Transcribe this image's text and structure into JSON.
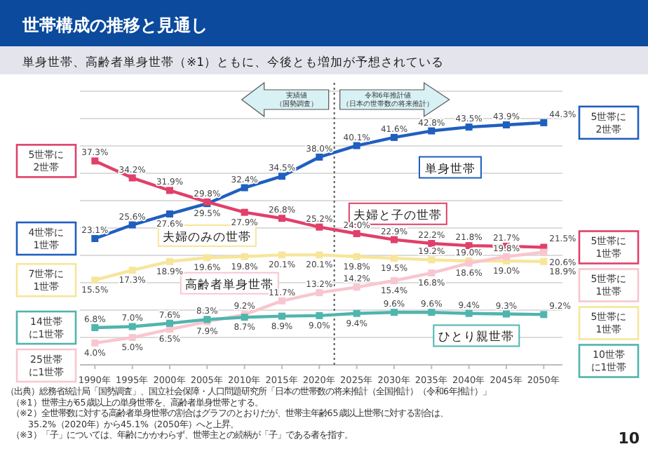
{
  "chart_data": {
    "type": "line",
    "title": "世帯構成の推移と見通し",
    "subtitle": "単身世帯、高齢者単身世帯（※1）ともに、今後とも増加が予想されている",
    "x": [
      1990,
      1995,
      2000,
      2005,
      2010,
      2015,
      2020,
      2025,
      2030,
      2035,
      2040,
      2045,
      2050
    ],
    "xlim": [
      1988,
      2052.5
    ],
    "xticks": [
      {
        "value": 1990,
        "label": "1990年"
      },
      {
        "value": 1995,
        "label": "1995年"
      },
      {
        "value": 2000,
        "label": "2000年"
      },
      {
        "value": 2005,
        "label": "2005年"
      },
      {
        "value": 2010,
        "label": "2010年"
      },
      {
        "value": 2015,
        "label": "2015年"
      },
      {
        "value": 2020,
        "label": "2020年"
      },
      {
        "value": 2025,
        "label": "2025年"
      },
      {
        "value": 2030,
        "label": "2030年"
      },
      {
        "value": 2035,
        "label": "2035年"
      },
      {
        "value": 2040,
        "label": "2040年"
      },
      {
        "value": 2045,
        "label": "2045年"
      },
      {
        "value": 2050,
        "label": "2050年"
      }
    ],
    "tick_labels": "x",
    "grid": "y",
    "marker": "square",
    "line_style": "solid",
    "series": [
      {
        "name": "単身世帯",
        "color": "#1f5fbf",
        "values": [
          23.1,
          25.6,
          27.6,
          29.5,
          32.4,
          34.5,
          38.0,
          40.1,
          41.6,
          42.8,
          43.5,
          43.9,
          44.3
        ],
        "value_labels": [
          "23.1%",
          "25.6%",
          "27.6%",
          "29.5%",
          "32.4%",
          "34.5%",
          "38.0%",
          "40.1%",
          "41.6%",
          "42.8%",
          "43.5%",
          "43.9%",
          "44.3%"
        ]
      },
      {
        "name": "夫婦と子の世帯",
        "color": "#e0406a",
        "values": [
          37.3,
          34.2,
          31.9,
          29.8,
          27.9,
          26.8,
          25.2,
          24.0,
          22.9,
          22.2,
          21.8,
          21.7,
          21.5
        ],
        "value_labels": [
          "37.3%",
          "34.2%",
          "31.9%",
          "29.8%",
          "27.9%",
          "26.8%",
          "25.2%",
          "24.0%",
          "22.9%",
          "22.2%",
          "21.8%",
          "21.7%",
          "21.5%"
        ]
      },
      {
        "name": "夫婦のみの世帯",
        "color": "#f7e59a",
        "values": [
          15.5,
          17.3,
          18.9,
          19.6,
          19.8,
          20.1,
          20.1,
          19.8,
          19.5,
          19.2,
          19.0,
          19.0,
          18.9
        ],
        "value_labels": [
          "15.5%",
          "17.3%",
          "18.9%",
          "19.6%",
          "19.8%",
          "20.1%",
          "20.1%",
          "19.8%",
          "19.5%",
          "19.2%",
          "19.0%",
          "19.0%",
          "18.9%"
        ]
      },
      {
        "name": "高齢者単身世帯",
        "color": "#f8c6cf",
        "values": [
          4.0,
          5.0,
          6.5,
          7.9,
          9.2,
          11.7,
          13.2,
          14.2,
          15.4,
          16.8,
          18.6,
          19.8,
          20.6
        ],
        "value_labels": [
          "4.0%",
          "5.0%",
          "6.5%",
          "7.9%",
          "9.2%",
          "11.7%",
          "13.2%",
          "14.2%",
          "15.4%",
          "16.8%",
          "18.6%",
          "19.8%",
          "20.6%"
        ]
      },
      {
        "name": "ひとり親世帯",
        "color": "#4fb5ad",
        "values": [
          6.8,
          7.0,
          7.6,
          8.3,
          8.7,
          8.9,
          9.0,
          9.4,
          9.6,
          9.6,
          9.4,
          9.3,
          9.2
        ],
        "value_labels": [
          "6.8%",
          "7.0%",
          "7.6%",
          "8.3%",
          "8.7%",
          "8.9%",
          "9.0%",
          "9.4%",
          "9.6%",
          "9.6%",
          "9.4%",
          "9.3%",
          "9.2%"
        ]
      }
    ],
    "ref_lines": [
      {
        "axis": "x",
        "value": 2022,
        "line_style": "dotted",
        "color": "#555555"
      }
    ],
    "annotations": [
      "実績値（国勢調査）",
      "令和6年推計値（日本の世帯数の将来推計）",
      "5世帯に2世帯",
      "4世帯に1世帯",
      "7世帯に1世帯",
      "14世帯に1世帯",
      "25世帯に1世帯",
      "5世帯に2世帯",
      "5世帯に1世帯",
      "5世帯に1世帯",
      "5世帯に1世帯",
      "10世帯に1世帯",
      "（出典）総務省統計局「国勢調査」、国立社会保障・人口問題研究所「日本の世帯数の将来推計（全国推計）（令和6年推計）」",
      "（※1）世帯主が65歳以上の単身世帯を、高齢者単身世帯とする。",
      "（※2）全世帯数に対する高齢者単身世帯の割合はグラフのとおりだが、世帯主年齢65歳以上世帯に対する割合は、35.2%（2020年）から45.1%（2050年）へと上昇。",
      "（※3）「子」については、年齢にかかわらず、世帯主との続柄が「子」である者を指す。",
      "10"
    ]
  }
}
